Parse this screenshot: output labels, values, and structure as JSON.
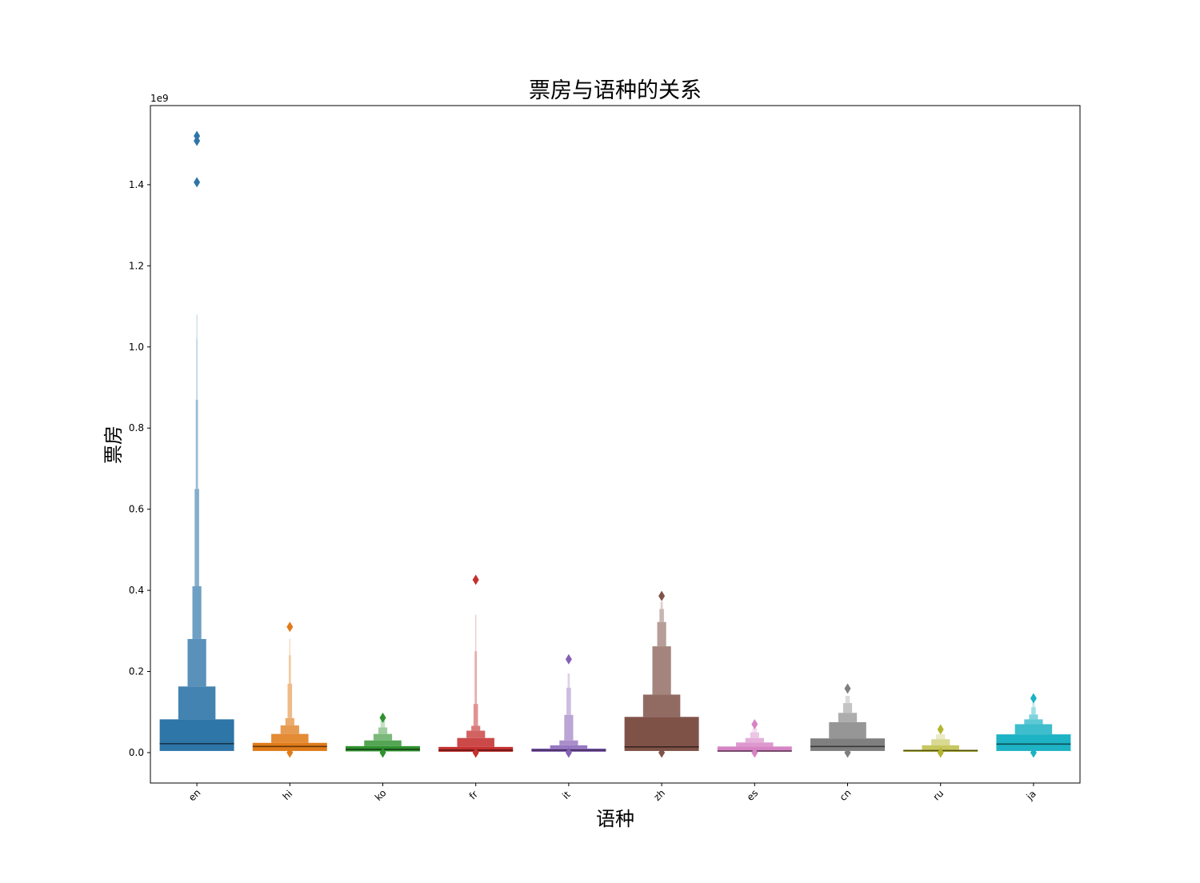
{
  "chart_data": {
    "type": "boxenplot",
    "title": "票房与语种的关系",
    "xlabel": "语种",
    "ylabel": "票房",
    "y_offset_label": "1e9",
    "y_scale_multiplier": 1000000000,
    "ylim": [
      -0.075,
      1.595
    ],
    "yticks": [
      0.0,
      0.2,
      0.4,
      0.6,
      0.8,
      1.0,
      1.2,
      1.4
    ],
    "ytick_labels": [
      "0.0",
      "0.2",
      "0.4",
      "0.6",
      "0.8",
      "1.0",
      "1.2",
      "1.4"
    ],
    "categories": [
      "en",
      "hi",
      "ko",
      "fr",
      "it",
      "zh",
      "es",
      "cn",
      "ru",
      "ja"
    ],
    "xtick_rotation_deg": 45,
    "grid": false,
    "legend": "none",
    "series": [
      {
        "category": "en",
        "color": "#2e75a8",
        "median": 0.022,
        "boxes": [
          {
            "low": 0.004,
            "high": 0.082,
            "width": 1.0
          },
          {
            "low": 0.082,
            "high": 0.163,
            "width": 0.5
          },
          {
            "low": 0.163,
            "high": 0.28,
            "width": 0.25
          },
          {
            "low": 0.28,
            "high": 0.41,
            "width": 0.12
          },
          {
            "low": 0.41,
            "high": 0.65,
            "width": 0.06
          },
          {
            "low": 0.65,
            "high": 0.87,
            "width": 0.03
          },
          {
            "low": 0.87,
            "high": 1.02,
            "width": 0.015
          },
          {
            "low": 1.02,
            "high": 1.08,
            "width": 0.008
          }
        ],
        "outliers": [
          1.52,
          1.508,
          1.406
        ]
      },
      {
        "category": "hi",
        "color": "#e07b1a",
        "median": 0.015,
        "boxes": [
          {
            "low": 0.004,
            "high": 0.024,
            "width": 1.0
          },
          {
            "low": 0.024,
            "high": 0.046,
            "width": 0.5
          },
          {
            "low": 0.046,
            "high": 0.067,
            "width": 0.25
          },
          {
            "low": 0.067,
            "high": 0.085,
            "width": 0.12
          },
          {
            "low": 0.085,
            "high": 0.17,
            "width": 0.06
          },
          {
            "low": 0.17,
            "high": 0.24,
            "width": 0.03
          },
          {
            "low": 0.24,
            "high": 0.28,
            "width": 0.015
          }
        ],
        "outliers": [
          0.31,
          0.0
        ]
      },
      {
        "category": "ko",
        "color": "#2f912f",
        "median": 0.008,
        "boxes": [
          {
            "low": 0.003,
            "high": 0.016,
            "width": 1.0
          },
          {
            "low": 0.016,
            "high": 0.03,
            "width": 0.5
          },
          {
            "low": 0.03,
            "high": 0.046,
            "width": 0.25
          },
          {
            "low": 0.046,
            "high": 0.062,
            "width": 0.12
          },
          {
            "low": 0.062,
            "high": 0.08,
            "width": 0.06
          }
        ],
        "outliers": [
          0.086,
          0.0
        ]
      },
      {
        "category": "fr",
        "color": "#c53030",
        "median": 0.006,
        "boxes": [
          {
            "low": 0.002,
            "high": 0.014,
            "width": 1.0
          },
          {
            "low": 0.014,
            "high": 0.036,
            "width": 0.5
          },
          {
            "low": 0.036,
            "high": 0.054,
            "width": 0.25
          },
          {
            "low": 0.054,
            "high": 0.066,
            "width": 0.12
          },
          {
            "low": 0.066,
            "high": 0.12,
            "width": 0.06
          },
          {
            "low": 0.12,
            "high": 0.25,
            "width": 0.03
          },
          {
            "low": 0.25,
            "high": 0.34,
            "width": 0.012
          }
        ],
        "outliers": [
          0.426,
          0.0
        ]
      },
      {
        "category": "it",
        "color": "#8660b5",
        "median": 0.006,
        "boxes": [
          {
            "low": 0.002,
            "high": 0.01,
            "width": 1.0
          },
          {
            "low": 0.01,
            "high": 0.018,
            "width": 0.5
          },
          {
            "low": 0.018,
            "high": 0.03,
            "width": 0.25
          },
          {
            "low": 0.03,
            "high": 0.093,
            "width": 0.12
          },
          {
            "low": 0.093,
            "high": 0.16,
            "width": 0.06
          },
          {
            "low": 0.16,
            "high": 0.195,
            "width": 0.03
          }
        ],
        "outliers": [
          0.23,
          0.0
        ]
      },
      {
        "category": "zh",
        "color": "#7f5248",
        "median": 0.014,
        "boxes": [
          {
            "low": 0.004,
            "high": 0.088,
            "width": 1.0
          },
          {
            "low": 0.088,
            "high": 0.143,
            "width": 0.5
          },
          {
            "low": 0.143,
            "high": 0.262,
            "width": 0.25
          },
          {
            "low": 0.262,
            "high": 0.322,
            "width": 0.12
          },
          {
            "low": 0.322,
            "high": 0.354,
            "width": 0.06
          },
          {
            "low": 0.354,
            "high": 0.372,
            "width": 0.03
          }
        ],
        "outliers": [
          0.386,
          0.0
        ]
      },
      {
        "category": "es",
        "color": "#d683c4",
        "median": 0.004,
        "boxes": [
          {
            "low": 0.002,
            "high": 0.015,
            "width": 1.0
          },
          {
            "low": 0.015,
            "high": 0.025,
            "width": 0.5
          },
          {
            "low": 0.025,
            "high": 0.036,
            "width": 0.25
          },
          {
            "low": 0.036,
            "high": 0.05,
            "width": 0.12
          },
          {
            "low": 0.05,
            "high": 0.06,
            "width": 0.06
          }
        ],
        "outliers": [
          0.07,
          0.0
        ]
      },
      {
        "category": "cn",
        "color": "#7f7f7f",
        "median": 0.015,
        "boxes": [
          {
            "low": 0.004,
            "high": 0.035,
            "width": 1.0
          },
          {
            "low": 0.035,
            "high": 0.075,
            "width": 0.5
          },
          {
            "low": 0.075,
            "high": 0.098,
            "width": 0.25
          },
          {
            "low": 0.098,
            "high": 0.122,
            "width": 0.12
          },
          {
            "low": 0.122,
            "high": 0.14,
            "width": 0.06
          }
        ],
        "outliers": [
          0.158,
          0.0
        ]
      },
      {
        "category": "ru",
        "color": "#b5b52e",
        "median": 0.005,
        "boxes": [
          {
            "low": 0.002,
            "high": 0.007,
            "width": 1.0
          },
          {
            "low": 0.007,
            "high": 0.018,
            "width": 0.5
          },
          {
            "low": 0.018,
            "high": 0.033,
            "width": 0.25
          },
          {
            "low": 0.033,
            "high": 0.045,
            "width": 0.12
          }
        ],
        "outliers": [
          0.057,
          0.0
        ]
      },
      {
        "category": "ja",
        "color": "#1db2c4",
        "median": 0.021,
        "boxes": [
          {
            "low": 0.004,
            "high": 0.045,
            "width": 1.0
          },
          {
            "low": 0.045,
            "high": 0.07,
            "width": 0.5
          },
          {
            "low": 0.07,
            "high": 0.082,
            "width": 0.25
          },
          {
            "low": 0.082,
            "high": 0.094,
            "width": 0.12
          },
          {
            "low": 0.094,
            "high": 0.112,
            "width": 0.06
          },
          {
            "low": 0.112,
            "high": 0.124,
            "width": 0.03
          }
        ],
        "outliers": [
          0.134,
          0.0
        ]
      }
    ]
  }
}
